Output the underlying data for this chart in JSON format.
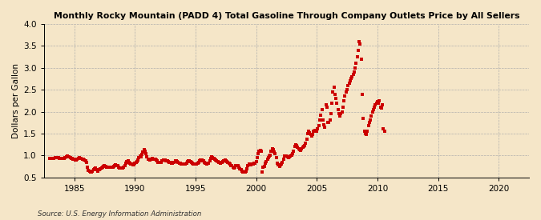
{
  "title": "Monthly Rocky Mountain (PADD 4) Total Gasoline Through Company Outlets Price by All Sellers",
  "ylabel": "Dollars per Gallon",
  "source": "Source: U.S. Energy Information Administration",
  "background_color": "#f5e6c8",
  "line_color": "#cc0000",
  "ylim": [
    0.5,
    4.0
  ],
  "yticks": [
    0.5,
    1.0,
    1.5,
    2.0,
    2.5,
    3.0,
    3.5,
    4.0
  ],
  "xlim_start": 1982.5,
  "xlim_end": 2022.5,
  "xticks": [
    1985,
    1990,
    1995,
    2000,
    2005,
    2010,
    2015,
    2020
  ],
  "data": [
    [
      1983.0,
      0.94
    ],
    [
      1983.08,
      0.93
    ],
    [
      1983.17,
      0.93
    ],
    [
      1983.25,
      0.93
    ],
    [
      1983.33,
      0.94
    ],
    [
      1983.42,
      0.96
    ],
    [
      1983.5,
      0.96
    ],
    [
      1983.58,
      0.96
    ],
    [
      1983.67,
      0.95
    ],
    [
      1983.75,
      0.94
    ],
    [
      1983.83,
      0.94
    ],
    [
      1983.92,
      0.94
    ],
    [
      1984.0,
      0.94
    ],
    [
      1984.08,
      0.94
    ],
    [
      1984.17,
      0.94
    ],
    [
      1984.25,
      0.95
    ],
    [
      1984.33,
      0.97
    ],
    [
      1984.42,
      0.98
    ],
    [
      1984.5,
      0.97
    ],
    [
      1984.58,
      0.97
    ],
    [
      1984.67,
      0.96
    ],
    [
      1984.75,
      0.94
    ],
    [
      1984.83,
      0.93
    ],
    [
      1984.92,
      0.92
    ],
    [
      1985.0,
      0.91
    ],
    [
      1985.08,
      0.9
    ],
    [
      1985.17,
      0.9
    ],
    [
      1985.25,
      0.91
    ],
    [
      1985.33,
      0.93
    ],
    [
      1985.42,
      0.95
    ],
    [
      1985.5,
      0.94
    ],
    [
      1985.58,
      0.93
    ],
    [
      1985.67,
      0.92
    ],
    [
      1985.75,
      0.91
    ],
    [
      1985.83,
      0.89
    ],
    [
      1985.92,
      0.88
    ],
    [
      1986.0,
      0.84
    ],
    [
      1986.08,
      0.74
    ],
    [
      1986.17,
      0.66
    ],
    [
      1986.25,
      0.64
    ],
    [
      1986.33,
      0.63
    ],
    [
      1986.42,
      0.63
    ],
    [
      1986.5,
      0.64
    ],
    [
      1986.58,
      0.67
    ],
    [
      1986.67,
      0.7
    ],
    [
      1986.75,
      0.71
    ],
    [
      1986.83,
      0.67
    ],
    [
      1986.92,
      0.65
    ],
    [
      1987.0,
      0.67
    ],
    [
      1987.08,
      0.68
    ],
    [
      1987.17,
      0.7
    ],
    [
      1987.25,
      0.72
    ],
    [
      1987.33,
      0.74
    ],
    [
      1987.42,
      0.75
    ],
    [
      1987.5,
      0.76
    ],
    [
      1987.58,
      0.75
    ],
    [
      1987.67,
      0.74
    ],
    [
      1987.75,
      0.73
    ],
    [
      1987.83,
      0.73
    ],
    [
      1987.92,
      0.74
    ],
    [
      1988.0,
      0.74
    ],
    [
      1988.08,
      0.74
    ],
    [
      1988.17,
      0.74
    ],
    [
      1988.25,
      0.75
    ],
    [
      1988.33,
      0.77
    ],
    [
      1988.42,
      0.78
    ],
    [
      1988.5,
      0.77
    ],
    [
      1988.58,
      0.76
    ],
    [
      1988.67,
      0.74
    ],
    [
      1988.75,
      0.72
    ],
    [
      1988.83,
      0.72
    ],
    [
      1988.92,
      0.72
    ],
    [
      1989.0,
      0.72
    ],
    [
      1989.08,
      0.74
    ],
    [
      1989.17,
      0.77
    ],
    [
      1989.25,
      0.82
    ],
    [
      1989.33,
      0.86
    ],
    [
      1989.42,
      0.87
    ],
    [
      1989.5,
      0.84
    ],
    [
      1989.58,
      0.82
    ],
    [
      1989.67,
      0.81
    ],
    [
      1989.75,
      0.8
    ],
    [
      1989.83,
      0.79
    ],
    [
      1989.92,
      0.78
    ],
    [
      1990.0,
      0.82
    ],
    [
      1990.08,
      0.84
    ],
    [
      1990.17,
      0.86
    ],
    [
      1990.25,
      0.89
    ],
    [
      1990.33,
      0.95
    ],
    [
      1990.42,
      0.98
    ],
    [
      1990.5,
      0.97
    ],
    [
      1990.58,
      1.02
    ],
    [
      1990.67,
      1.08
    ],
    [
      1990.75,
      1.13
    ],
    [
      1990.83,
      1.1
    ],
    [
      1990.92,
      1.04
    ],
    [
      1991.0,
      0.97
    ],
    [
      1991.08,
      0.92
    ],
    [
      1991.17,
      0.91
    ],
    [
      1991.25,
      0.9
    ],
    [
      1991.33,
      0.91
    ],
    [
      1991.42,
      0.93
    ],
    [
      1991.5,
      0.92
    ],
    [
      1991.58,
      0.92
    ],
    [
      1991.67,
      0.91
    ],
    [
      1991.75,
      0.89
    ],
    [
      1991.83,
      0.87
    ],
    [
      1991.92,
      0.85
    ],
    [
      1992.0,
      0.84
    ],
    [
      1992.08,
      0.84
    ],
    [
      1992.17,
      0.85
    ],
    [
      1992.25,
      0.87
    ],
    [
      1992.33,
      0.89
    ],
    [
      1992.42,
      0.9
    ],
    [
      1992.5,
      0.89
    ],
    [
      1992.58,
      0.88
    ],
    [
      1992.67,
      0.87
    ],
    [
      1992.75,
      0.86
    ],
    [
      1992.83,
      0.85
    ],
    [
      1992.92,
      0.84
    ],
    [
      1993.0,
      0.83
    ],
    [
      1993.08,
      0.83
    ],
    [
      1993.17,
      0.84
    ],
    [
      1993.25,
      0.85
    ],
    [
      1993.33,
      0.87
    ],
    [
      1993.42,
      0.88
    ],
    [
      1993.5,
      0.86
    ],
    [
      1993.58,
      0.85
    ],
    [
      1993.67,
      0.83
    ],
    [
      1993.75,
      0.82
    ],
    [
      1993.83,
      0.81
    ],
    [
      1993.92,
      0.8
    ],
    [
      1994.0,
      0.8
    ],
    [
      1994.08,
      0.8
    ],
    [
      1994.17,
      0.81
    ],
    [
      1994.25,
      0.83
    ],
    [
      1994.33,
      0.86
    ],
    [
      1994.42,
      0.88
    ],
    [
      1994.5,
      0.87
    ],
    [
      1994.58,
      0.86
    ],
    [
      1994.67,
      0.85
    ],
    [
      1994.75,
      0.83
    ],
    [
      1994.83,
      0.81
    ],
    [
      1994.92,
      0.8
    ],
    [
      1995.0,
      0.8
    ],
    [
      1995.08,
      0.81
    ],
    [
      1995.17,
      0.83
    ],
    [
      1995.25,
      0.85
    ],
    [
      1995.33,
      0.88
    ],
    [
      1995.42,
      0.9
    ],
    [
      1995.5,
      0.89
    ],
    [
      1995.58,
      0.88
    ],
    [
      1995.67,
      0.87
    ],
    [
      1995.75,
      0.85
    ],
    [
      1995.83,
      0.83
    ],
    [
      1995.92,
      0.81
    ],
    [
      1996.0,
      0.82
    ],
    [
      1996.08,
      0.83
    ],
    [
      1996.17,
      0.87
    ],
    [
      1996.25,
      0.93
    ],
    [
      1996.33,
      0.97
    ],
    [
      1996.42,
      0.96
    ],
    [
      1996.5,
      0.94
    ],
    [
      1996.58,
      0.92
    ],
    [
      1996.67,
      0.89
    ],
    [
      1996.75,
      0.87
    ],
    [
      1996.83,
      0.86
    ],
    [
      1996.92,
      0.85
    ],
    [
      1997.0,
      0.84
    ],
    [
      1997.08,
      0.83
    ],
    [
      1997.17,
      0.84
    ],
    [
      1997.25,
      0.86
    ],
    [
      1997.33,
      0.88
    ],
    [
      1997.42,
      0.89
    ],
    [
      1997.5,
      0.88
    ],
    [
      1997.58,
      0.86
    ],
    [
      1997.67,
      0.85
    ],
    [
      1997.75,
      0.82
    ],
    [
      1997.83,
      0.8
    ],
    [
      1997.92,
      0.77
    ],
    [
      1998.0,
      0.76
    ],
    [
      1998.08,
      0.74
    ],
    [
      1998.17,
      0.72
    ],
    [
      1998.25,
      0.74
    ],
    [
      1998.33,
      0.76
    ],
    [
      1998.42,
      0.77
    ],
    [
      1998.5,
      0.76
    ],
    [
      1998.58,
      0.73
    ],
    [
      1998.67,
      0.7
    ],
    [
      1998.75,
      0.67
    ],
    [
      1998.83,
      0.65
    ],
    [
      1998.92,
      0.63
    ],
    [
      1999.0,
      0.63
    ],
    [
      1999.08,
      0.63
    ],
    [
      1999.17,
      0.64
    ],
    [
      1999.25,
      0.7
    ],
    [
      1999.33,
      0.77
    ],
    [
      1999.42,
      0.8
    ],
    [
      1999.5,
      0.79
    ],
    [
      1999.58,
      0.79
    ],
    [
      1999.67,
      0.8
    ],
    [
      1999.75,
      0.8
    ],
    [
      1999.83,
      0.82
    ],
    [
      1999.92,
      0.83
    ],
    [
      2000.0,
      0.86
    ],
    [
      2000.08,
      0.95
    ],
    [
      2000.17,
      1.05
    ],
    [
      2000.25,
      1.1
    ],
    [
      2000.33,
      1.12
    ],
    [
      2000.42,
      1.1
    ],
    [
      2000.5,
      0.63
    ],
    [
      2000.58,
      0.73
    ],
    [
      2000.67,
      0.75
    ],
    [
      2000.75,
      0.82
    ],
    [
      2000.83,
      0.86
    ],
    [
      2000.92,
      0.92
    ],
    [
      2001.0,
      0.95
    ],
    [
      2001.08,
      0.98
    ],
    [
      2001.17,
      1.0
    ],
    [
      2001.25,
      1.1
    ],
    [
      2001.33,
      1.15
    ],
    [
      2001.42,
      1.14
    ],
    [
      2001.5,
      1.08
    ],
    [
      2001.58,
      1.05
    ],
    [
      2001.67,
      0.95
    ],
    [
      2001.75,
      0.83
    ],
    [
      2001.83,
      0.78
    ],
    [
      2001.92,
      0.75
    ],
    [
      2002.0,
      0.78
    ],
    [
      2002.08,
      0.8
    ],
    [
      2002.17,
      0.84
    ],
    [
      2002.25,
      0.92
    ],
    [
      2002.33,
      0.98
    ],
    [
      2002.42,
      0.99
    ],
    [
      2002.5,
      0.98
    ],
    [
      2002.58,
      0.97
    ],
    [
      2002.67,
      0.96
    ],
    [
      2002.75,
      0.97
    ],
    [
      2002.83,
      0.99
    ],
    [
      2002.92,
      1.0
    ],
    [
      2003.0,
      1.05
    ],
    [
      2003.08,
      1.1
    ],
    [
      2003.17,
      1.2
    ],
    [
      2003.25,
      1.25
    ],
    [
      2003.33,
      1.22
    ],
    [
      2003.42,
      1.18
    ],
    [
      2003.5,
      1.15
    ],
    [
      2003.58,
      1.13
    ],
    [
      2003.67,
      1.12
    ],
    [
      2003.75,
      1.15
    ],
    [
      2003.83,
      1.18
    ],
    [
      2003.92,
      1.2
    ],
    [
      2004.0,
      1.22
    ],
    [
      2004.08,
      1.28
    ],
    [
      2004.17,
      1.38
    ],
    [
      2004.25,
      1.5
    ],
    [
      2004.33,
      1.55
    ],
    [
      2004.42,
      1.52
    ],
    [
      2004.5,
      1.48
    ],
    [
      2004.58,
      1.45
    ],
    [
      2004.67,
      1.48
    ],
    [
      2004.75,
      1.55
    ],
    [
      2004.83,
      1.58
    ],
    [
      2004.92,
      1.55
    ],
    [
      2005.0,
      1.55
    ],
    [
      2005.08,
      1.6
    ],
    [
      2005.17,
      1.68
    ],
    [
      2005.25,
      1.8
    ],
    [
      2005.33,
      1.92
    ],
    [
      2005.42,
      2.05
    ],
    [
      2005.5,
      1.8
    ],
    [
      2005.58,
      1.7
    ],
    [
      2005.67,
      1.65
    ],
    [
      2005.75,
      2.15
    ],
    [
      2005.83,
      2.1
    ],
    [
      2005.92,
      1.75
    ],
    [
      2006.0,
      1.75
    ],
    [
      2006.08,
      1.8
    ],
    [
      2006.17,
      1.95
    ],
    [
      2006.25,
      2.2
    ],
    [
      2006.33,
      2.45
    ],
    [
      2006.42,
      2.55
    ],
    [
      2006.5,
      2.4
    ],
    [
      2006.58,
      2.3
    ],
    [
      2006.67,
      2.2
    ],
    [
      2006.75,
      2.05
    ],
    [
      2006.83,
      1.95
    ],
    [
      2006.92,
      1.9
    ],
    [
      2007.0,
      1.95
    ],
    [
      2007.08,
      2.0
    ],
    [
      2007.17,
      2.1
    ],
    [
      2007.25,
      2.25
    ],
    [
      2007.33,
      2.35
    ],
    [
      2007.42,
      2.45
    ],
    [
      2007.5,
      2.5
    ],
    [
      2007.58,
      2.6
    ],
    [
      2007.67,
      2.65
    ],
    [
      2007.75,
      2.7
    ],
    [
      2007.83,
      2.75
    ],
    [
      2007.92,
      2.8
    ],
    [
      2008.0,
      2.85
    ],
    [
      2008.08,
      2.9
    ],
    [
      2008.17,
      3.0
    ],
    [
      2008.25,
      3.1
    ],
    [
      2008.33,
      3.25
    ],
    [
      2008.42,
      3.4
    ],
    [
      2008.5,
      3.6
    ],
    [
      2008.58,
      3.55
    ],
    [
      2008.67,
      3.2
    ],
    [
      2008.75,
      2.4
    ],
    [
      2008.83,
      1.85
    ],
    [
      2008.92,
      1.55
    ],
    [
      2009.0,
      1.5
    ],
    [
      2009.08,
      1.48
    ],
    [
      2009.17,
      1.55
    ],
    [
      2009.25,
      1.68
    ],
    [
      2009.33,
      1.75
    ],
    [
      2009.42,
      1.8
    ],
    [
      2009.5,
      1.9
    ],
    [
      2009.58,
      2.0
    ],
    [
      2009.67,
      2.05
    ],
    [
      2009.75,
      2.1
    ],
    [
      2009.83,
      2.15
    ],
    [
      2009.92,
      2.2
    ],
    [
      2010.0,
      2.22
    ],
    [
      2010.08,
      2.2
    ],
    [
      2010.17,
      2.25
    ],
    [
      2010.25,
      2.1
    ],
    [
      2010.33,
      2.08
    ],
    [
      2010.42,
      2.15
    ],
    [
      2010.5,
      1.6
    ],
    [
      2010.58,
      1.55
    ]
  ]
}
